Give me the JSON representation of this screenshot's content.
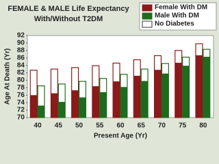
{
  "chart_data": {
    "type": "overlay-bar",
    "title": [
      "FEMALE & MALE Life Expectancy",
      "With/Without T2DM"
    ],
    "x_label": "Present Age (Yr)",
    "y_label": "Age At Death (Yr)",
    "categories": [
      "40",
      "45",
      "50",
      "55",
      "60",
      "65",
      "70",
      "75",
      "80"
    ],
    "series": [
      {
        "name": "Female With DM",
        "color": "#8b1a1a",
        "values": [
          76,
          76.5,
          77.3,
          78.4,
          79.7,
          81.2,
          82.8,
          84.7,
          86.7
        ],
        "without_dm_values": [
          82.7,
          83,
          83.4,
          83.9,
          84.6,
          85.5,
          86.6,
          88,
          89.8
        ]
      },
      {
        "name": "Male With DM",
        "color": "#1e6b1e",
        "values": [
          73.2,
          74.2,
          75.4,
          76.8,
          78.2,
          79.8,
          81.8,
          83.9,
          86.3
        ],
        "without_dm_values": [
          78.5,
          79,
          79.7,
          80.5,
          81.6,
          83,
          84.5,
          86.2,
          88.3
        ]
      }
    ],
    "no_diabetes": {
      "name": "No Diabetes",
      "color": "#ffffff"
    },
    "ylim": [
      70,
      92
    ],
    "yticks": [
      70,
      72,
      74,
      76,
      78,
      80,
      82,
      84,
      86,
      88,
      90,
      92
    ]
  }
}
